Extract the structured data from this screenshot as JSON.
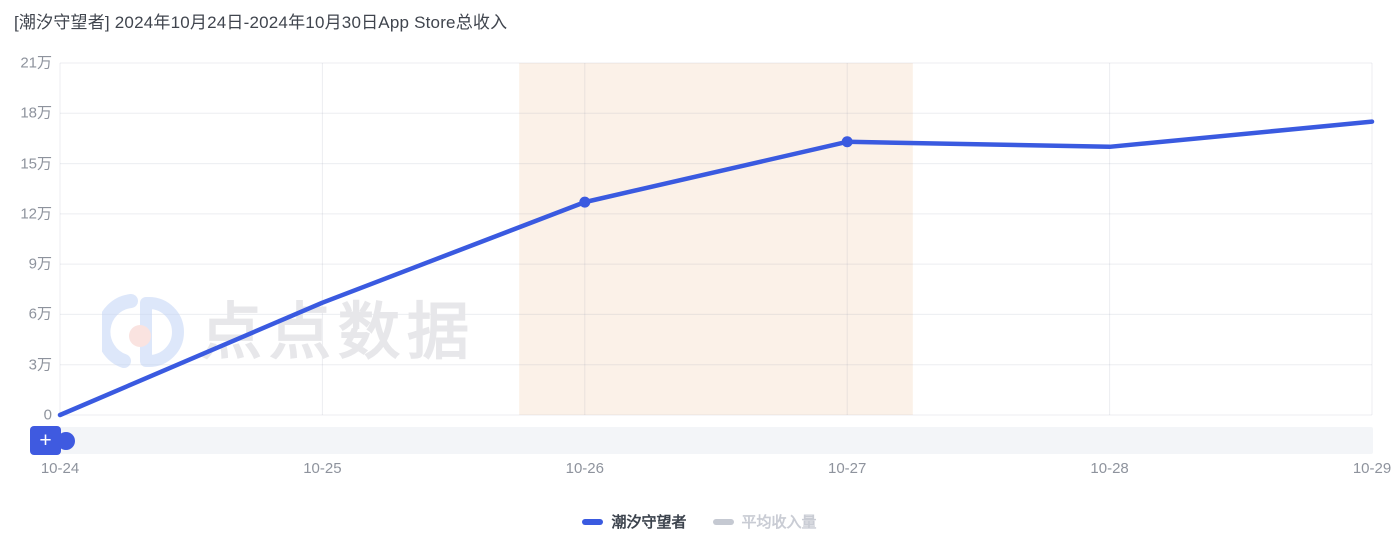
{
  "page": {
    "title": "[潮汐守望者] 2024年10月24日-2024年10月30日App Store总收入"
  },
  "chart_data": {
    "type": "line",
    "title": "[潮汐守望者] 2024年10月24日-2024年10月30日App Store总收入",
    "x": [
      "10-24",
      "10-25",
      "10-26",
      "10-27",
      "10-28",
      "10-29"
    ],
    "series": [
      {
        "name": "潮汐守望者",
        "values_wan": [
          0,
          6.7,
          12.7,
          16.3,
          16.0,
          17.5
        ],
        "color": "#3a5ae0",
        "label_color": "#3c434d",
        "active": true,
        "marker_indices": [
          2,
          3
        ]
      },
      {
        "name": "平均收入量",
        "values_wan": [],
        "color": "#c5c9d2",
        "label_color": "#c9ccd4",
        "active": false,
        "marker_indices": []
      }
    ],
    "y_ticks": [
      {
        "value": 0,
        "label": "0"
      },
      {
        "value": 3,
        "label": "3万"
      },
      {
        "value": 6,
        "label": "6万"
      },
      {
        "value": 9,
        "label": "9万"
      },
      {
        "value": 12,
        "label": "12万"
      },
      {
        "value": 15,
        "label": "15万"
      },
      {
        "value": 18,
        "label": "18万"
      },
      {
        "value": 21,
        "label": "21万"
      }
    ],
    "ylim": [
      0,
      21
    ],
    "unit": "万",
    "grid": true,
    "legend_position": "bottom",
    "highlight_band": {
      "from_index": 1.75,
      "to_index": 3.25,
      "color": "#fbf1e8"
    }
  },
  "watermark": {
    "text": "点点数据"
  },
  "data_zoom": {
    "button_label": "+",
    "accent_color": "#3f5ae0"
  },
  "colors": {
    "line_blue": "#3a5ae0",
    "band_peach": "#fbf1e8",
    "gridline": "rgba(135,145,165,0.16)",
    "axis_text": "#8e939d",
    "track_gray": "#f3f5f8"
  }
}
